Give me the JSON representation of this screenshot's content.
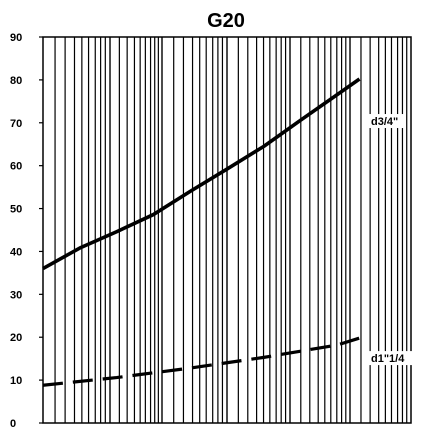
{
  "chart_data": {
    "type": "line",
    "title": "G20",
    "xlabel": "",
    "ylabel": "",
    "ylim": [
      0,
      90
    ],
    "yticks": [
      0,
      10,
      20,
      30,
      40,
      50,
      60,
      70,
      80,
      90
    ],
    "grid": {
      "vertical": true,
      "horizontal": false
    },
    "series": [
      {
        "name": "d3/4\"",
        "style": "solid",
        "color": "#000000",
        "points": [
          [
            0.0,
            36.0
          ],
          [
            0.1,
            40.8
          ],
          [
            0.2,
            44.6
          ],
          [
            0.3,
            48.6
          ],
          [
            0.4,
            54.0
          ],
          [
            0.5,
            59.2
          ],
          [
            0.6,
            64.5
          ],
          [
            0.7,
            70.6
          ],
          [
            0.8,
            76.6
          ],
          [
            0.86,
            80.2
          ]
        ]
      },
      {
        "name": "d1\"1/4",
        "style": "dashed",
        "color": "#000000",
        "points": [
          [
            0.0,
            8.8
          ],
          [
            0.2,
            10.6
          ],
          [
            0.4,
            12.8
          ],
          [
            0.6,
            15.3
          ],
          [
            0.8,
            18.2
          ],
          [
            0.86,
            19.8
          ]
        ]
      }
    ]
  }
}
